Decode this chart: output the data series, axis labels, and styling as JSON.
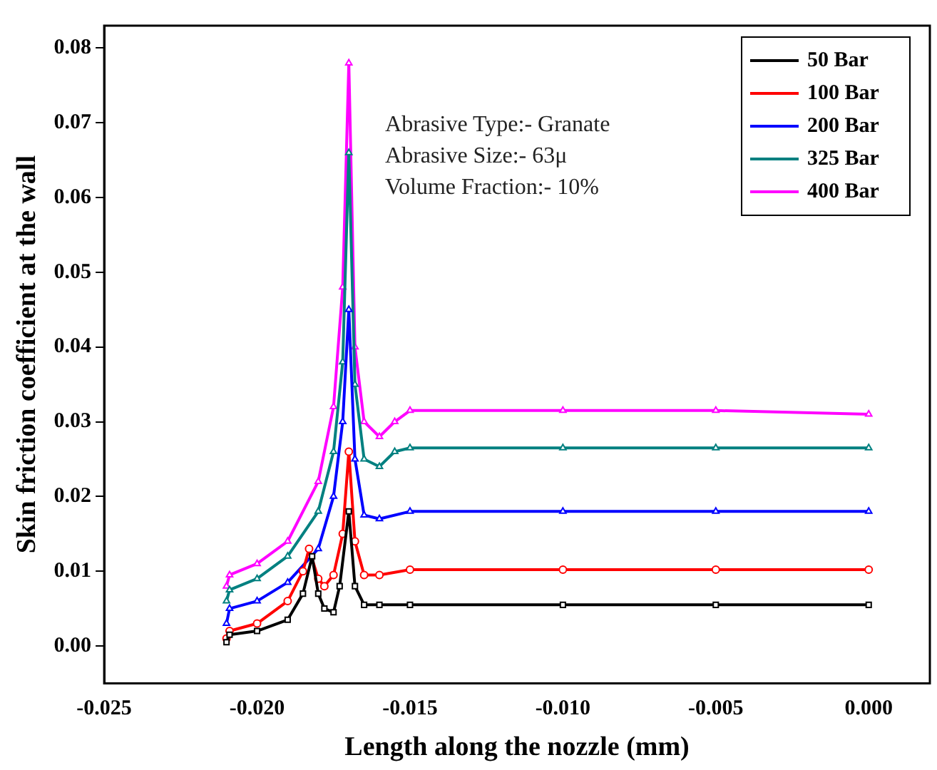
{
  "chart_data": {
    "type": "line",
    "xlabel": "Length along the nozzle (mm)",
    "ylabel": "Skin friction coefficient at the wall",
    "xlim": [
      -0.025,
      0.002
    ],
    "xticks": [
      -0.025,
      {
        "value": -0.02,
        "label": "-0.020"
      },
      -0.015,
      {
        "value": -0.01,
        "label": "-0.010"
      },
      -0.005,
      {
        "value": 0,
        "label": "0.000"
      }
    ],
    "ylim": [
      -0.005,
      0.083
    ],
    "yticks": [
      {
        "value": 0,
        "label": "0.00"
      },
      0.01,
      0.02,
      0.03,
      0.04,
      0.05,
      0.06,
      0.07,
      0.08
    ],
    "grid": false,
    "legend": "top right",
    "annotations": [
      "Abrasive Type:- Granate",
      "Abrasive Size:- 63μ",
      "Volume Fraction:- 10%"
    ],
    "series": [
      {
        "name": "50 Bar",
        "color": "#000000",
        "marker": "square",
        "x": [
          -0.021,
          -0.0209,
          -0.02,
          -0.019,
          -0.0185,
          -0.0182,
          -0.018,
          -0.0178,
          -0.0175,
          -0.0173,
          -0.017,
          -0.0168,
          -0.0165,
          -0.016,
          -0.015,
          -0.01,
          -0.005,
          0.0
        ],
        "values": [
          0.0005,
          0.0015,
          0.002,
          0.0035,
          0.007,
          0.012,
          0.007,
          0.005,
          0.0045,
          0.008,
          0.018,
          0.008,
          0.0055,
          0.0055,
          0.0055,
          0.0055,
          0.0055,
          0.0055
        ]
      },
      {
        "name": "100 Bar",
        "color": "#ff0000",
        "marker": "circle",
        "x": [
          -0.021,
          -0.0209,
          -0.02,
          -0.019,
          -0.0185,
          -0.0183,
          -0.018,
          -0.0178,
          -0.0175,
          -0.0172,
          -0.017,
          -0.0168,
          -0.0165,
          -0.016,
          -0.015,
          -0.01,
          -0.005,
          0.0
        ],
        "values": [
          0.001,
          0.002,
          0.003,
          0.006,
          0.01,
          0.013,
          0.009,
          0.008,
          0.0095,
          0.015,
          0.026,
          0.014,
          0.0095,
          0.0095,
          0.0102,
          0.0102,
          0.0102,
          0.0102
        ]
      },
      {
        "name": "200 Bar",
        "color": "#0000ff",
        "marker": "triangle",
        "x": [
          -0.021,
          -0.0209,
          -0.02,
          -0.019,
          -0.018,
          -0.0175,
          -0.0172,
          -0.017,
          -0.0168,
          -0.0165,
          -0.016,
          -0.015,
          -0.01,
          -0.005,
          0.0
        ],
        "values": [
          0.003,
          0.005,
          0.006,
          0.0085,
          0.013,
          0.02,
          0.03,
          0.045,
          0.025,
          0.0175,
          0.017,
          0.018,
          0.018,
          0.018,
          0.018
        ]
      },
      {
        "name": "325 Bar",
        "color": "#008080",
        "marker": "triangle",
        "x": [
          -0.021,
          -0.0209,
          -0.02,
          -0.019,
          -0.018,
          -0.0175,
          -0.0172,
          -0.017,
          -0.0168,
          -0.0165,
          -0.016,
          -0.0155,
          -0.015,
          -0.01,
          -0.005,
          0.0
        ],
        "values": [
          0.006,
          0.0075,
          0.009,
          0.012,
          0.018,
          0.026,
          0.038,
          0.066,
          0.035,
          0.025,
          0.024,
          0.026,
          0.0265,
          0.0265,
          0.0265,
          0.0265
        ]
      },
      {
        "name": "400 Bar",
        "color": "#ff00ff",
        "marker": "triangle",
        "x": [
          -0.021,
          -0.0209,
          -0.02,
          -0.019,
          -0.018,
          -0.0175,
          -0.0172,
          -0.017,
          -0.0168,
          -0.0165,
          -0.016,
          -0.0155,
          -0.015,
          -0.01,
          -0.005,
          0.0
        ],
        "values": [
          0.008,
          0.0095,
          0.011,
          0.014,
          0.022,
          0.032,
          0.048,
          0.078,
          0.04,
          0.03,
          0.028,
          0.03,
          0.0315,
          0.0315,
          0.0315,
          0.031
        ]
      }
    ]
  }
}
